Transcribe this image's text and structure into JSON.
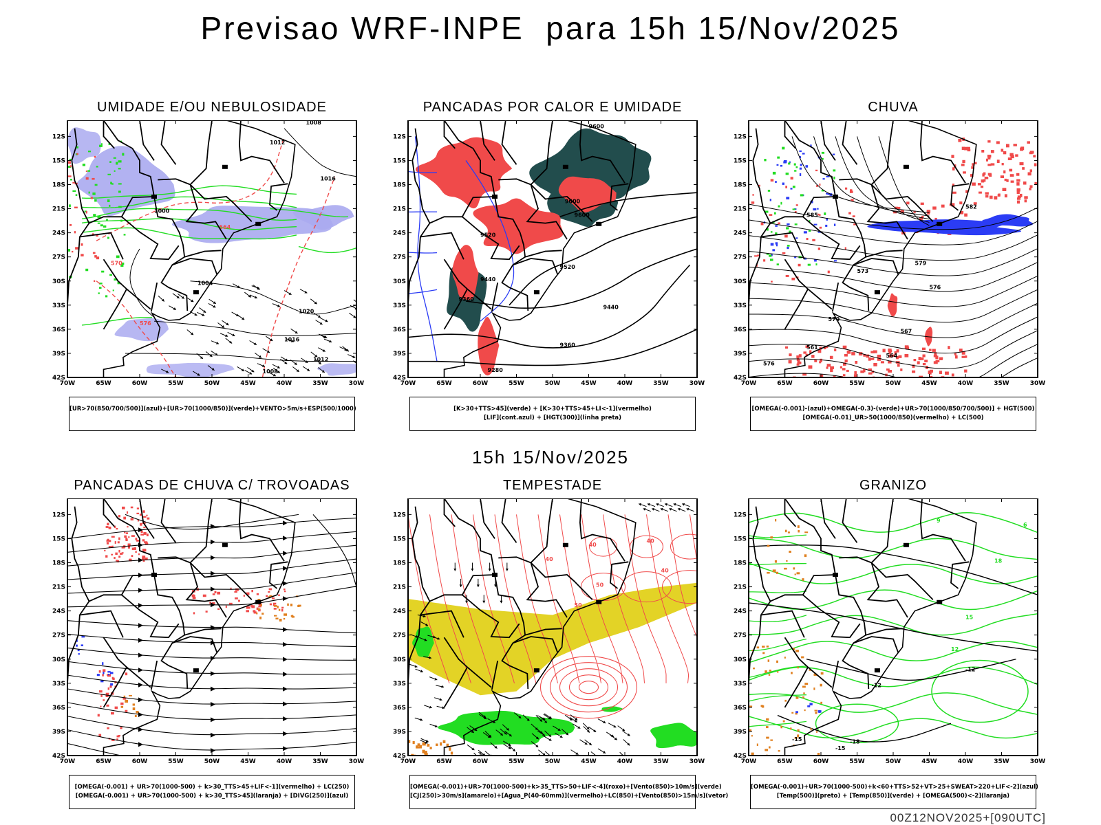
{
  "title": "Previsao WRF-INPE  para 15h 15/Nov/2025",
  "mid_title": "15h 15/Nov/2025",
  "footer": "00Z12NOV2025+[090UTC]",
  "axes": {
    "lat_labels": [
      "12S",
      "15S",
      "18S",
      "21S",
      "24S",
      "27S",
      "30S",
      "33S",
      "36S",
      "39S",
      "42S"
    ],
    "lon_labels": [
      "70W",
      "65W",
      "60W",
      "55W",
      "50W",
      "45W",
      "40W",
      "35W",
      "30W"
    ]
  },
  "colors": {
    "blue": "#2b3cf5",
    "lavender": "#aaaaf0",
    "green": "#22dd22",
    "red": "#f04a4a",
    "teal": "#224d4d",
    "yellow": "#e3d326",
    "orange": "#e08020"
  },
  "panels": [
    {
      "title": "UMIDADE E/OU NEBULOSIDADE",
      "legend": [
        "[UR>70(850/700/500)](azul)+[UR>70(1000/850)](verde)+VENTO>5m/s+ESP(500/1000)"
      ],
      "contour_labels": [
        "1008",
        "1012",
        "1016",
        "1020",
        "1016",
        "1012",
        "1008",
        "1004",
        "576",
        "570",
        "564",
        "1000"
      ]
    },
    {
      "title": "PANCADAS POR CALOR E UMIDADE",
      "legend": [
        "[K>30+TTS>45](verde) + [K>30+TTS>45+LI<-1](vermelho)",
        "[LIF](cont.azul) + [HGT(300)](linha preta)"
      ],
      "contour_labels": [
        "9600",
        "9600",
        "9520",
        "9520",
        "9440",
        "9440",
        "9360",
        "9360",
        "9280",
        "9600"
      ]
    },
    {
      "title": "CHUVA",
      "legend": [
        "[OMEGA(-0.001)-(azul)+OMEGA(-0.3)-(verde)+UR>70(1000/850/700/500)] + HGT(500)",
        "[OMEGA(-0.01)_UR>50(1000/850)(vermelho) + LC(500)"
      ],
      "contour_labels": [
        "582",
        "579",
        "576",
        "573",
        "570",
        "567",
        "564",
        "561",
        "576",
        "585"
      ]
    },
    {
      "title": "PANCADAS DE CHUVA C/ TROVOADAS",
      "legend": [
        "[OMEGA(-0.001) + UR>70(1000-500) + k>30_TTS>45+LIF<-1](vermelho) + LC(250)",
        "[OMEGA(-0.001) + UR>70(1000-500) + k>30_TTS>45](laranja) + [DIVG(250)](azul)"
      ],
      "contour_labels": []
    },
    {
      "title": "TEMPESTADE",
      "legend": [
        "[OMEGA(-0.001)+UR>70(1000-500)+k>35_TTS>50+LIF<-4](roxo)+[Vento(850)>10m/s](verde)",
        "[CJ(250)>30m/s](amarelo)+[Agua_P(40-60mm)](vermelho)+LC(850)+[Vento(850)>15m/s](vetor)"
      ],
      "contour_labels": [
        "40",
        "50",
        "40",
        "40",
        "50",
        "40"
      ]
    },
    {
      "title": "GRANIZO",
      "legend": [
        "[OMEGA(-0.001)+UR>70(1000-500)+k<60+TTS>52+VT>25+SWEAT>220+LIF<-2](azul)",
        "[Temp(500)](preto) + [Temp(850)](verde) + [OMEGA(500)<-2](laranja)"
      ],
      "contour_labels": [
        "-12",
        "-12",
        "-15",
        "-15",
        "18",
        "15",
        "12",
        "9",
        "6",
        "-18"
      ]
    }
  ]
}
